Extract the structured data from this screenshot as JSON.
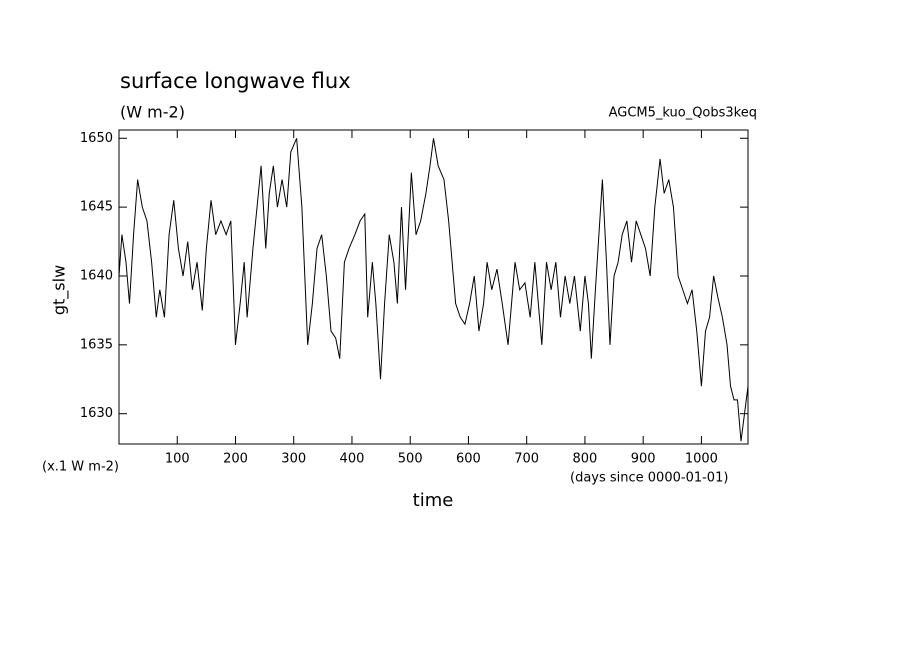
{
  "chart_data": {
    "type": "line",
    "title": "surface longwave flux",
    "subtitle": "(W m-2)",
    "annotation": "AGCM5_kuo_Qobs3keq",
    "ylabel": "gt_slw",
    "y_unit": "(x.1 W m-2)",
    "x_unit": "(days since 0000-01-01)",
    "xlabel": "time",
    "xlim": [
      0,
      1080
    ],
    "ylim": [
      1627.8,
      1650.6
    ],
    "xticks": [
      100,
      200,
      300,
      400,
      500,
      600,
      700,
      800,
      900,
      1000
    ],
    "yticks": [
      1630,
      1635,
      1640,
      1645,
      1650
    ],
    "series": [
      {
        "color": "#000000",
        "x": [
          0,
          5,
          12,
          18,
          25,
          32,
          40,
          48,
          56,
          64,
          70,
          78,
          86,
          94,
          102,
          110,
          118,
          126,
          134,
          143,
          150,
          158,
          166,
          175,
          184,
          192,
          200,
          208,
          215,
          220,
          230,
          237,
          244,
          252,
          258,
          265,
          272,
          280,
          288,
          295,
          305,
          314,
          324,
          332,
          340,
          348,
          356,
          364,
          372,
          379,
          387,
          395,
          405,
          414,
          422,
          427,
          435,
          441,
          449,
          456,
          464,
          472,
          478,
          485,
          492,
          502,
          510,
          518,
          527,
          534,
          540,
          548,
          558,
          566,
          578,
          586,
          594,
          602,
          610,
          618,
          626,
          632,
          640,
          649,
          658,
          668,
          674,
          680,
          688,
          697,
          706,
          714,
          720,
          726,
          734,
          742,
          750,
          758,
          766,
          774,
          782,
          792,
          800,
          806,
          811,
          818,
          824,
          830,
          837,
          843,
          850,
          857,
          864,
          872,
          880,
          888,
          896,
          904,
          912,
          920,
          929,
          936,
          944,
          952,
          960,
          968,
          976,
          984,
          992,
          1000,
          1007,
          1014,
          1021,
          1028,
          1036,
          1044,
          1050,
          1056,
          1062,
          1068,
          1074,
          1080
        ],
        "values": [
          1640,
          1643,
          1641,
          1638,
          1643,
          1647,
          1645,
          1644,
          1641,
          1637,
          1639,
          1637,
          1643,
          1645.5,
          1642,
          1640,
          1642.5,
          1639,
          1641,
          1637.5,
          1642,
          1645.5,
          1643,
          1644,
          1643,
          1644,
          1635,
          1638,
          1641,
          1637,
          1642,
          1645,
          1648,
          1642,
          1646,
          1648,
          1645,
          1647,
          1645,
          1649,
          1650,
          1645,
          1635,
          1638,
          1642,
          1643,
          1640,
          1636,
          1635.5,
          1634,
          1641,
          1642,
          1643,
          1644,
          1644.5,
          1637,
          1641,
          1638,
          1632.5,
          1638,
          1643,
          1641,
          1638,
          1645,
          1639,
          1647.5,
          1643,
          1644,
          1646,
          1648,
          1650,
          1648,
          1647,
          1644,
          1638,
          1637,
          1636.5,
          1638,
          1640,
          1636,
          1638,
          1641,
          1639,
          1640.5,
          1638,
          1635,
          1638,
          1641,
          1639,
          1639.5,
          1637,
          1641,
          1638,
          1635,
          1641,
          1639,
          1641,
          1637,
          1640,
          1638,
          1640,
          1636,
          1640,
          1638,
          1634,
          1639,
          1643,
          1647,
          1641,
          1635,
          1640,
          1641,
          1643,
          1644,
          1641,
          1644,
          1643,
          1642,
          1640,
          1645,
          1648.5,
          1646,
          1647,
          1645,
          1640,
          1639,
          1638,
          1639,
          1636,
          1632,
          1636,
          1637,
          1640,
          1638.5,
          1637,
          1635,
          1632,
          1631,
          1631,
          1628,
          1630,
          1632
        ]
      }
    ]
  }
}
